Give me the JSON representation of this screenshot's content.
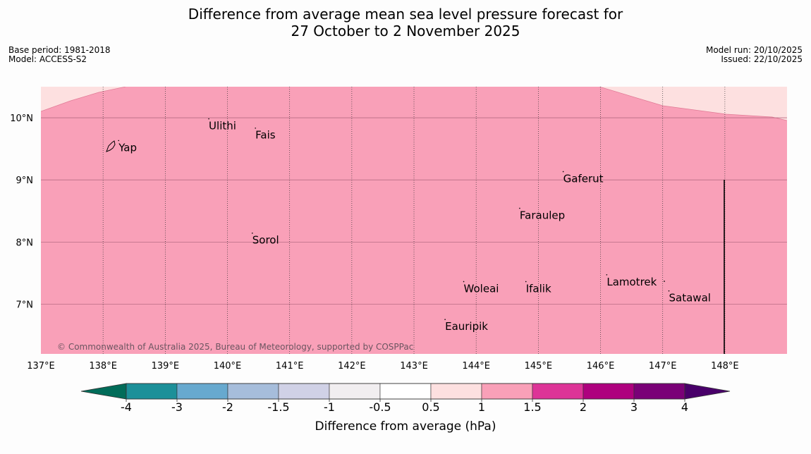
{
  "header": {
    "title_line1": "Difference from average mean sea level pressure forecast for",
    "title_line2": "27 October to 2 November 2025",
    "base_period": "Base period: 1981-2018",
    "model": "Model: ACCESS-S2",
    "model_run": "Model run: 20/10/2025",
    "issued": "Issued: 22/10/2025"
  },
  "map": {
    "lon_range": [
      137.0,
      149.0
    ],
    "lat_range": [
      6.2,
      10.5
    ],
    "lat_ticks": [
      {
        "value": 10,
        "label": "10°N"
      },
      {
        "value": 9,
        "label": "9°N"
      },
      {
        "value": 8,
        "label": "8°N"
      },
      {
        "value": 7,
        "label": "7°N"
      }
    ],
    "lon_ticks": [
      {
        "value": 137,
        "label": "137°E"
      },
      {
        "value": 138,
        "label": "138°E"
      },
      {
        "value": 139,
        "label": "139°E"
      },
      {
        "value": 140,
        "label": "140°E"
      },
      {
        "value": 141,
        "label": "141°E"
      },
      {
        "value": 142,
        "label": "142°E"
      },
      {
        "value": 143,
        "label": "143°E"
      },
      {
        "value": 144,
        "label": "144°E"
      },
      {
        "value": 145,
        "label": "145°E"
      },
      {
        "value": 146,
        "label": "146°E"
      },
      {
        "value": 147,
        "label": "147°E"
      },
      {
        "value": 148,
        "label": "148°E"
      }
    ],
    "places": [
      {
        "name": "Yap",
        "lon": 138.25,
        "lat": 9.52
      },
      {
        "name": "Ulithi",
        "lon": 139.7,
        "lat": 9.87
      },
      {
        "name": "Fais",
        "lon": 140.45,
        "lat": 9.72
      },
      {
        "name": "Gaferut",
        "lon": 145.4,
        "lat": 9.02
      },
      {
        "name": "Faraulep",
        "lon": 144.7,
        "lat": 8.43
      },
      {
        "name": "Sorol",
        "lon": 140.4,
        "lat": 8.03
      },
      {
        "name": "Lamotrek",
        "lon": 146.1,
        "lat": 7.36
      },
      {
        "name": "Satawal",
        "lon": 147.1,
        "lat": 7.1
      },
      {
        "name": "Woleai",
        "lon": 143.8,
        "lat": 7.25
      },
      {
        "name": "Ifalik",
        "lon": 144.8,
        "lat": 7.25
      },
      {
        "name": "Eauripik",
        "lon": 143.5,
        "lat": 6.64
      }
    ],
    "copyright": "© Commonwealth of Australia 2025, Bureau of Meteorology, supported by COSPPac",
    "main_fill_value_range": "1 to 1.5",
    "main_fill_color": "#f9a0b8",
    "upper_fill_value_range": "0.5 to 1",
    "upper_fill_color": "#fde0e0"
  },
  "colorbar": {
    "title": "Difference from average (hPa)",
    "tick_labels": [
      "-4",
      "-3",
      "-2",
      "-1.5",
      "-1",
      "-0.5",
      "0.5",
      "1",
      "1.5",
      "2",
      "3",
      "4"
    ],
    "low_extend_color": "#016c59",
    "high_extend_color": "#49006a",
    "segment_colors": [
      "#1c9099",
      "#67a9cf",
      "#a6bddb",
      "#d0d1e6",
      "#f1eef0",
      "#ffffff",
      "#fde0e0",
      "#f9a0b8",
      "#dd3497",
      "#ae017e",
      "#7a0177"
    ]
  }
}
